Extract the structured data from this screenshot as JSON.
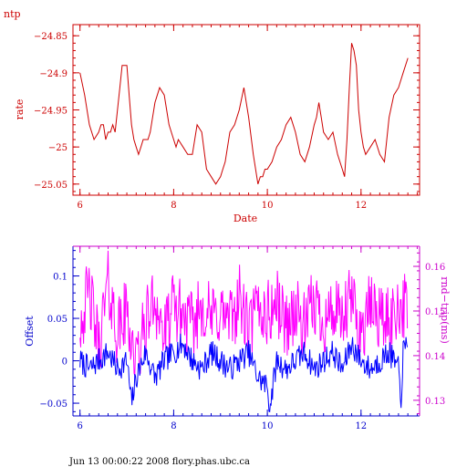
{
  "colors": {
    "top": "#cc0000",
    "offset": "#0000ff",
    "rtt": "#ff00ff",
    "axis_blue": "#0000cc"
  },
  "footer": "Jun 13 00:00:22 2008 flory.phas.ubc.ca",
  "chart_data": [
    {
      "type": "line",
      "title": "ntp",
      "xlabel": "Date",
      "ylabel": "rate",
      "xlim": [
        5.85,
        13.25
      ],
      "ylim": [
        -25.065,
        -24.835
      ],
      "x_ticks": [
        6,
        8,
        10,
        12
      ],
      "y_ticks": [
        -24.85,
        -24.9,
        -24.95,
        -25,
        -25.05
      ],
      "grid": false,
      "series": [
        {
          "x": [
            6.0,
            6.1,
            6.2,
            6.3,
            6.4,
            6.45,
            6.5,
            6.55,
            6.6,
            6.65,
            6.7,
            6.75,
            6.8,
            6.85,
            6.9,
            6.95,
            7.0,
            7.05,
            7.1,
            7.15,
            7.2,
            7.25,
            7.3,
            7.35,
            7.4,
            7.45,
            7.5,
            7.55,
            7.6,
            7.7,
            7.8,
            7.85,
            7.9,
            8.0,
            8.05,
            8.1,
            8.2,
            8.3,
            8.4,
            8.5,
            8.6,
            8.7,
            8.8,
            8.9,
            9.0,
            9.05,
            9.1,
            9.2,
            9.3,
            9.4,
            9.5,
            9.55,
            9.6,
            9.7,
            9.8,
            9.85,
            9.9,
            9.95,
            10.0,
            10.1,
            10.2,
            10.3,
            10.4,
            10.5,
            10.6,
            10.7,
            10.8,
            10.9,
            11.0,
            11.05,
            11.1,
            11.15,
            11.2,
            11.3,
            11.4,
            11.5,
            11.6,
            11.65,
            11.7,
            11.75,
            11.8,
            11.85,
            11.9,
            11.95,
            12.0,
            12.05,
            12.1,
            12.2,
            12.3,
            12.4,
            12.5,
            12.6,
            12.7,
            12.8,
            12.9,
            13.0
          ],
          "y": [
            -24.9,
            -24.93,
            -24.97,
            -24.99,
            -24.98,
            -24.97,
            -24.97,
            -24.99,
            -24.98,
            -24.98,
            -24.97,
            -24.98,
            -24.95,
            -24.92,
            -24.89,
            -24.89,
            -24.89,
            -24.93,
            -24.97,
            -24.99,
            -25.0,
            -25.01,
            -25.0,
            -24.99,
            -24.99,
            -24.99,
            -24.98,
            -24.96,
            -24.94,
            -24.92,
            -24.93,
            -24.95,
            -24.97,
            -24.99,
            -25.0,
            -24.99,
            -25.0,
            -25.01,
            -25.01,
            -24.97,
            -24.98,
            -25.03,
            -25.04,
            -25.05,
            -25.04,
            -25.03,
            -25.02,
            -24.98,
            -24.97,
            -24.95,
            -24.92,
            -24.94,
            -24.96,
            -25.01,
            -25.05,
            -25.04,
            -25.04,
            -25.03,
            -25.03,
            -25.02,
            -25.0,
            -24.99,
            -24.97,
            -24.96,
            -24.98,
            -25.01,
            -25.02,
            -25.0,
            -24.97,
            -24.96,
            -24.94,
            -24.96,
            -24.98,
            -24.99,
            -24.98,
            -25.01,
            -25.03,
            -25.04,
            -24.99,
            -24.92,
            -24.86,
            -24.87,
            -24.89,
            -24.95,
            -24.98,
            -25.0,
            -25.01,
            -25.0,
            -24.99,
            -25.01,
            -25.02,
            -24.96,
            -24.93,
            -24.92,
            -24.9,
            -24.88
          ]
        }
      ]
    },
    {
      "type": "line",
      "xlabel": "",
      "ylabel": "Offset",
      "y2label": "rnd−trip(ms)",
      "xlim": [
        5.85,
        13.25
      ],
      "ylim": [
        -0.065,
        0.135
      ],
      "y2lim": [
        0.1265,
        0.1645
      ],
      "x_ticks": [
        6,
        8,
        10,
        12
      ],
      "y_ticks": [
        0.1,
        0.05,
        0,
        -0.05
      ],
      "y2_ticks": [
        0.16,
        0.15,
        0.14,
        0.13
      ],
      "grid": false,
      "series": [
        {
          "name": "Offset",
          "x": [
            6.0,
            6.2,
            6.4,
            6.6,
            6.8,
            7.0,
            7.1,
            7.2,
            7.4,
            7.6,
            7.8,
            8.0,
            8.2,
            8.4,
            8.6,
            8.8,
            9.0,
            9.2,
            9.4,
            9.6,
            9.8,
            10.0,
            10.05,
            10.2,
            10.4,
            10.6,
            10.8,
            11.0,
            11.2,
            11.4,
            11.6,
            11.8,
            12.0,
            12.2,
            12.4,
            12.6,
            12.8,
            12.85,
            12.9,
            13.0
          ],
          "y": [
            0.0,
            -0.01,
            0.0,
            0.01,
            -0.01,
            0.0,
            -0.05,
            -0.02,
            0.01,
            -0.02,
            0.0,
            0.01,
            0.02,
            0.0,
            -0.01,
            0.01,
            0.0,
            -0.01,
            0.0,
            0.01,
            -0.02,
            -0.03,
            -0.055,
            0.0,
            -0.01,
            0.0,
            0.01,
            -0.01,
            0.0,
            0.01,
            -0.01,
            0.02,
            0.0,
            -0.01,
            0.0,
            0.01,
            -0.01,
            -0.05,
            0.01,
            0.02
          ]
        },
        {
          "name": "rnd−trip(ms)",
          "x": [
            6.0,
            6.2,
            6.4,
            6.6,
            6.8,
            7.0,
            7.2,
            7.4,
            7.6,
            7.8,
            8.0,
            8.2,
            8.4,
            8.6,
            8.8,
            9.0,
            9.2,
            9.4,
            9.6,
            9.8,
            10.0,
            10.2,
            10.4,
            10.6,
            10.8,
            11.0,
            11.2,
            11.4,
            11.6,
            11.8,
            12.0,
            12.2,
            12.4,
            12.6,
            12.8,
            13.0
          ],
          "y": [
            0.148,
            0.154,
            0.142,
            0.156,
            0.145,
            0.15,
            0.138,
            0.147,
            0.153,
            0.144,
            0.151,
            0.149,
            0.146,
            0.152,
            0.148,
            0.15,
            0.147,
            0.153,
            0.145,
            0.151,
            0.149,
            0.152,
            0.147,
            0.15,
            0.146,
            0.152,
            0.148,
            0.15,
            0.147,
            0.153,
            0.145,
            0.151,
            0.149,
            0.147,
            0.152,
            0.15
          ]
        }
      ]
    }
  ]
}
